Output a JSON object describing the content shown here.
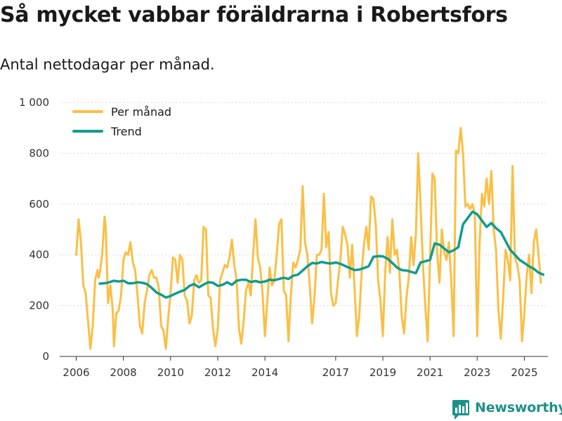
{
  "title": "Så mycket vabbar föräldrarna i Robertsfors",
  "subtitle": "Antal nettodagar per månad.",
  "brand": {
    "name": "Newsworthy",
    "icon": "newsworthy-logo-icon",
    "color": "#1f9188"
  },
  "colors": {
    "per_month": "#fbbf45",
    "trend": "#109c8f",
    "grid": "#d8d8d8",
    "axis": "#333333"
  },
  "chart_data": {
    "type": "line",
    "title": "Så mycket vabbar föräldrarna i Robertsfors",
    "subtitle": "Antal nettodagar per månad.",
    "xlabel": "",
    "ylabel": "",
    "ylim": [
      0,
      1000
    ],
    "xlim": [
      2005.3,
      2026.0
    ],
    "grid": true,
    "legend_position": "top-left",
    "y_ticks": [
      {
        "value": 0,
        "label": "0"
      },
      {
        "value": 200,
        "label": "200"
      },
      {
        "value": 400,
        "label": "400"
      },
      {
        "value": 600,
        "label": "600"
      },
      {
        "value": 800,
        "label": "800"
      },
      {
        "value": 1000,
        "label": "1 000"
      }
    ],
    "x_ticks": [
      {
        "value": 2006.0,
        "label": "2006"
      },
      {
        "value": 2008.0,
        "label": "2008"
      },
      {
        "value": 2010.0,
        "label": "2010"
      },
      {
        "value": 2012.0,
        "label": "2012"
      },
      {
        "value": 2014.0,
        "label": "2014"
      },
      {
        "value": 2017.0,
        "label": "2017"
      },
      {
        "value": 2019.0,
        "label": "2019"
      },
      {
        "value": 2021.0,
        "label": "2021"
      },
      {
        "value": 2023.0,
        "label": "2023"
      },
      {
        "value": 2025.0,
        "label": "2025"
      }
    ],
    "series": [
      {
        "name": "Per månad",
        "points": [
          [
            2006.0,
            400
          ],
          [
            2006.1,
            540
          ],
          [
            2006.2,
            450
          ],
          [
            2006.3,
            280
          ],
          [
            2006.4,
            250
          ],
          [
            2006.5,
            140
          ],
          [
            2006.6,
            30
          ],
          [
            2006.7,
            120
          ],
          [
            2006.8,
            300
          ],
          [
            2006.9,
            340
          ],
          [
            2006.95,
            310
          ],
          [
            2007.0,
            330
          ],
          [
            2007.1,
            400
          ],
          [
            2007.2,
            550
          ],
          [
            2007.25,
            510
          ],
          [
            2007.35,
            210
          ],
          [
            2007.45,
            280
          ],
          [
            2007.55,
            180
          ],
          [
            2007.6,
            40
          ],
          [
            2007.7,
            170
          ],
          [
            2007.8,
            180
          ],
          [
            2007.9,
            240
          ],
          [
            2008.0,
            380
          ],
          [
            2008.1,
            410
          ],
          [
            2008.2,
            400
          ],
          [
            2008.3,
            450
          ],
          [
            2008.4,
            370
          ],
          [
            2008.5,
            340
          ],
          [
            2008.6,
            240
          ],
          [
            2008.7,
            120
          ],
          [
            2008.8,
            90
          ],
          [
            2008.9,
            210
          ],
          [
            2009.0,
            260
          ],
          [
            2009.1,
            320
          ],
          [
            2009.2,
            340
          ],
          [
            2009.3,
            310
          ],
          [
            2009.4,
            310
          ],
          [
            2009.5,
            270
          ],
          [
            2009.6,
            120
          ],
          [
            2009.7,
            100
          ],
          [
            2009.8,
            30
          ],
          [
            2009.9,
            150
          ],
          [
            2010.0,
            250
          ],
          [
            2010.1,
            390
          ],
          [
            2010.2,
            380
          ],
          [
            2010.3,
            290
          ],
          [
            2010.4,
            400
          ],
          [
            2010.5,
            380
          ],
          [
            2010.6,
            240
          ],
          [
            2010.7,
            220
          ],
          [
            2010.8,
            130
          ],
          [
            2010.9,
            160
          ],
          [
            2011.0,
            300
          ],
          [
            2011.1,
            320
          ],
          [
            2011.2,
            290
          ],
          [
            2011.3,
            300
          ],
          [
            2011.4,
            510
          ],
          [
            2011.5,
            500
          ],
          [
            2011.6,
            240
          ],
          [
            2011.7,
            230
          ],
          [
            2011.8,
            110
          ],
          [
            2011.9,
            40
          ],
          [
            2012.0,
            110
          ],
          [
            2012.1,
            300
          ],
          [
            2012.2,
            330
          ],
          [
            2012.3,
            360
          ],
          [
            2012.4,
            350
          ],
          [
            2012.5,
            390
          ],
          [
            2012.6,
            460
          ],
          [
            2012.7,
            360
          ],
          [
            2012.8,
            300
          ],
          [
            2012.9,
            110
          ],
          [
            2013.0,
            50
          ],
          [
            2013.1,
            140
          ],
          [
            2013.2,
            260
          ],
          [
            2013.3,
            290
          ],
          [
            2013.4,
            240
          ],
          [
            2013.5,
            400
          ],
          [
            2013.6,
            540
          ],
          [
            2013.7,
            390
          ],
          [
            2013.8,
            350
          ],
          [
            2013.9,
            250
          ],
          [
            2014.0,
            80
          ],
          [
            2014.1,
            220
          ],
          [
            2014.2,
            350
          ],
          [
            2014.3,
            280
          ],
          [
            2014.4,
            300
          ],
          [
            2014.5,
            400
          ],
          [
            2014.6,
            520
          ],
          [
            2014.7,
            540
          ],
          [
            2014.8,
            260
          ],
          [
            2014.9,
            240
          ],
          [
            2015.0,
            60
          ],
          [
            2015.1,
            240
          ],
          [
            2015.2,
            370
          ],
          [
            2015.3,
            350
          ],
          [
            2015.4,
            380
          ],
          [
            2015.5,
            420
          ],
          [
            2015.6,
            670
          ],
          [
            2015.7,
            450
          ],
          [
            2015.8,
            400
          ],
          [
            2015.9,
            280
          ],
          [
            2016.0,
            130
          ],
          [
            2016.1,
            230
          ],
          [
            2016.2,
            400
          ],
          [
            2016.3,
            400
          ],
          [
            2016.4,
            420
          ],
          [
            2016.5,
            640
          ],
          [
            2016.6,
            430
          ],
          [
            2016.7,
            490
          ],
          [
            2016.8,
            250
          ],
          [
            2016.9,
            200
          ],
          [
            2017.0,
            210
          ],
          [
            2017.1,
            300
          ],
          [
            2017.2,
            380
          ],
          [
            2017.3,
            510
          ],
          [
            2017.4,
            480
          ],
          [
            2017.5,
            440
          ],
          [
            2017.6,
            310
          ],
          [
            2017.7,
            440
          ],
          [
            2017.8,
            270
          ],
          [
            2017.9,
            80
          ],
          [
            2018.0,
            160
          ],
          [
            2018.1,
            330
          ],
          [
            2018.2,
            440
          ],
          [
            2018.3,
            510
          ],
          [
            2018.4,
            420
          ],
          [
            2018.5,
            630
          ],
          [
            2018.6,
            620
          ],
          [
            2018.7,
            520
          ],
          [
            2018.8,
            300
          ],
          [
            2018.9,
            220
          ],
          [
            2019.0,
            80
          ],
          [
            2019.1,
            330
          ],
          [
            2019.2,
            470
          ],
          [
            2019.3,
            330
          ],
          [
            2019.4,
            540
          ],
          [
            2019.5,
            400
          ],
          [
            2019.6,
            420
          ],
          [
            2019.7,
            330
          ],
          [
            2019.8,
            160
          ],
          [
            2019.9,
            90
          ],
          [
            2020.0,
            230
          ],
          [
            2020.1,
            310
          ],
          [
            2020.2,
            470
          ],
          [
            2020.3,
            360
          ],
          [
            2020.4,
            480
          ],
          [
            2020.5,
            800
          ],
          [
            2020.6,
            590
          ],
          [
            2020.7,
            360
          ],
          [
            2020.8,
            200
          ],
          [
            2020.9,
            60
          ],
          [
            2021.0,
            380
          ],
          [
            2021.1,
            720
          ],
          [
            2021.2,
            700
          ],
          [
            2021.3,
            410
          ],
          [
            2021.4,
            290
          ],
          [
            2021.5,
            500
          ],
          [
            2021.6,
            410
          ],
          [
            2021.7,
            380
          ],
          [
            2021.8,
            450
          ],
          [
            2021.9,
            300
          ],
          [
            2022.0,
            80
          ],
          [
            2022.1,
            810
          ],
          [
            2022.2,
            800
          ],
          [
            2022.3,
            900
          ],
          [
            2022.4,
            800
          ],
          [
            2022.5,
            590
          ],
          [
            2022.6,
            600
          ],
          [
            2022.7,
            580
          ],
          [
            2022.8,
            600
          ],
          [
            2022.9,
            560
          ],
          [
            2023.0,
            80
          ],
          [
            2023.1,
            440
          ],
          [
            2023.2,
            640
          ],
          [
            2023.3,
            590
          ],
          [
            2023.4,
            700
          ],
          [
            2023.5,
            600
          ],
          [
            2023.6,
            730
          ],
          [
            2023.7,
            500
          ],
          [
            2023.8,
            420
          ],
          [
            2023.9,
            180
          ],
          [
            2024.0,
            70
          ],
          [
            2024.1,
            230
          ],
          [
            2024.2,
            420
          ],
          [
            2024.3,
            380
          ],
          [
            2024.4,
            300
          ],
          [
            2024.5,
            750
          ],
          [
            2024.6,
            390
          ],
          [
            2024.7,
            360
          ],
          [
            2024.8,
            300
          ],
          [
            2024.9,
            60
          ],
          [
            2025.0,
            170
          ],
          [
            2025.1,
            320
          ],
          [
            2025.2,
            400
          ],
          [
            2025.3,
            250
          ],
          [
            2025.4,
            450
          ],
          [
            2025.5,
            500
          ],
          [
            2025.6,
            400
          ],
          [
            2025.7,
            290
          ]
        ]
      },
      {
        "name": "Trend",
        "points": [
          [
            2007.0,
            287
          ],
          [
            2007.2,
            288
          ],
          [
            2007.4,
            292
          ],
          [
            2007.6,
            298
          ],
          [
            2007.8,
            295
          ],
          [
            2008.0,
            298
          ],
          [
            2008.2,
            288
          ],
          [
            2008.4,
            288
          ],
          [
            2008.6,
            292
          ],
          [
            2008.8,
            290
          ],
          [
            2009.0,
            285
          ],
          [
            2009.2,
            270
          ],
          [
            2009.4,
            252
          ],
          [
            2009.6,
            243
          ],
          [
            2009.8,
            232
          ],
          [
            2010.0,
            238
          ],
          [
            2010.2,
            247
          ],
          [
            2010.4,
            255
          ],
          [
            2010.6,
            262
          ],
          [
            2010.8,
            278
          ],
          [
            2011.0,
            285
          ],
          [
            2011.2,
            272
          ],
          [
            2011.4,
            283
          ],
          [
            2011.6,
            292
          ],
          [
            2011.8,
            290
          ],
          [
            2012.0,
            278
          ],
          [
            2012.2,
            282
          ],
          [
            2012.4,
            292
          ],
          [
            2012.6,
            282
          ],
          [
            2012.8,
            298
          ],
          [
            2013.0,
            302
          ],
          [
            2013.2,
            302
          ],
          [
            2013.4,
            293
          ],
          [
            2013.6,
            297
          ],
          [
            2013.8,
            292
          ],
          [
            2014.0,
            295
          ],
          [
            2014.2,
            302
          ],
          [
            2014.4,
            300
          ],
          [
            2014.6,
            305
          ],
          [
            2014.8,
            310
          ],
          [
            2015.0,
            305
          ],
          [
            2015.2,
            318
          ],
          [
            2015.4,
            322
          ],
          [
            2015.6,
            338
          ],
          [
            2015.8,
            355
          ],
          [
            2016.0,
            368
          ],
          [
            2016.2,
            366
          ],
          [
            2016.4,
            372
          ],
          [
            2016.6,
            368
          ],
          [
            2016.8,
            366
          ],
          [
            2017.0,
            370
          ],
          [
            2017.2,
            365
          ],
          [
            2017.4,
            356
          ],
          [
            2017.6,
            348
          ],
          [
            2017.8,
            340
          ],
          [
            2018.0,
            342
          ],
          [
            2018.2,
            348
          ],
          [
            2018.4,
            355
          ],
          [
            2018.6,
            392
          ],
          [
            2018.8,
            395
          ],
          [
            2019.0,
            394
          ],
          [
            2019.2,
            385
          ],
          [
            2019.4,
            368
          ],
          [
            2019.6,
            350
          ],
          [
            2019.8,
            340
          ],
          [
            2020.0,
            338
          ],
          [
            2020.2,
            333
          ],
          [
            2020.4,
            328
          ],
          [
            2020.6,
            370
          ],
          [
            2020.8,
            375
          ],
          [
            2021.0,
            380
          ],
          [
            2021.2,
            445
          ],
          [
            2021.4,
            440
          ],
          [
            2021.6,
            425
          ],
          [
            2021.8,
            410
          ],
          [
            2022.0,
            418
          ],
          [
            2022.2,
            430
          ],
          [
            2022.4,
            520
          ],
          [
            2022.6,
            545
          ],
          [
            2022.8,
            570
          ],
          [
            2023.0,
            560
          ],
          [
            2023.2,
            535
          ],
          [
            2023.4,
            510
          ],
          [
            2023.6,
            525
          ],
          [
            2023.8,
            505
          ],
          [
            2024.0,
            490
          ],
          [
            2024.2,
            455
          ],
          [
            2024.4,
            420
          ],
          [
            2024.6,
            400
          ],
          [
            2024.8,
            380
          ],
          [
            2025.0,
            368
          ],
          [
            2025.2,
            355
          ],
          [
            2025.4,
            345
          ],
          [
            2025.6,
            330
          ],
          [
            2025.8,
            322
          ]
        ]
      }
    ]
  }
}
